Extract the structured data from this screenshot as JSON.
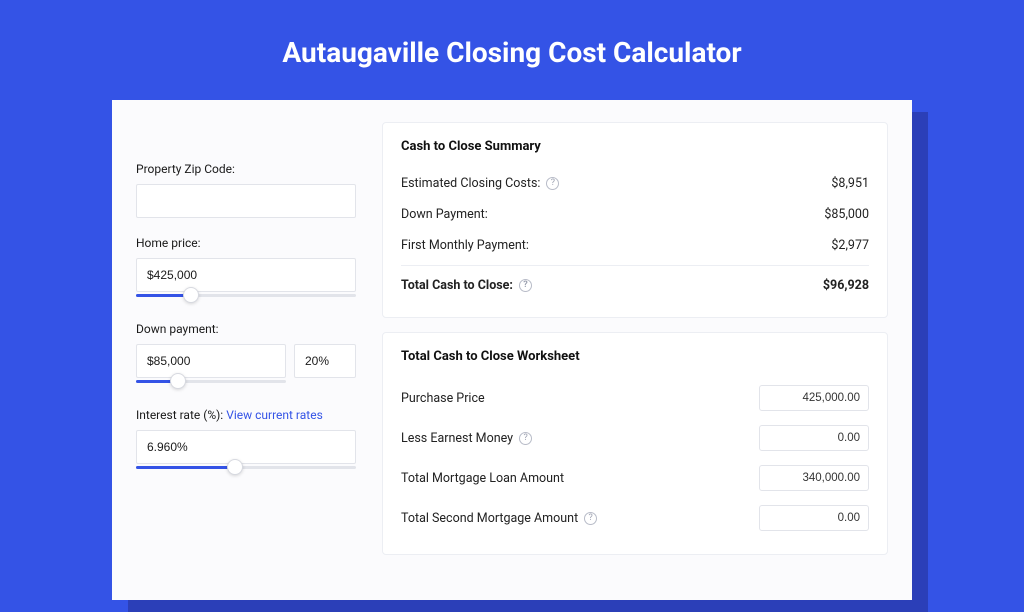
{
  "colors": {
    "page_bg": "#3453e6",
    "shadow_bg": "#2b3fb8",
    "card_bg": "#fbfbfd",
    "panel_bg": "#ffffff",
    "border": "#eceef3",
    "input_border": "#e2e4ea",
    "link": "#3453e6",
    "text": "#1a1a1a"
  },
  "title": "Autaugaville Closing Cost Calculator",
  "left": {
    "zip": {
      "label": "Property Zip Code:",
      "value": ""
    },
    "home_price": {
      "label": "Home price:",
      "value": "$425,000",
      "slider_pct": 25
    },
    "down_payment": {
      "label": "Down payment:",
      "value": "$85,000",
      "pct_value": "20%",
      "slider_pct": 28
    },
    "interest": {
      "label_prefix": "Interest rate (%): ",
      "link_text": "View current rates",
      "value": "6.960%",
      "slider_pct": 45
    }
  },
  "summary": {
    "title": "Cash to Close Summary",
    "rows": [
      {
        "label": "Estimated Closing Costs:",
        "has_help": true,
        "value": "$8,951"
      },
      {
        "label": "Down Payment:",
        "has_help": false,
        "value": "$85,000"
      },
      {
        "label": "First Monthly Payment:",
        "has_help": false,
        "value": "$2,977"
      }
    ],
    "total": {
      "label": "Total Cash to Close:",
      "has_help": true,
      "value": "$96,928"
    }
  },
  "worksheet": {
    "title": "Total Cash to Close Worksheet",
    "rows": [
      {
        "label": "Purchase Price",
        "has_help": false,
        "value": "425,000.00"
      },
      {
        "label": "Less Earnest Money",
        "has_help": true,
        "value": "0.00"
      },
      {
        "label": "Total Mortgage Loan Amount",
        "has_help": false,
        "value": "340,000.00"
      },
      {
        "label": "Total Second Mortgage Amount",
        "has_help": true,
        "value": "0.00"
      }
    ]
  }
}
